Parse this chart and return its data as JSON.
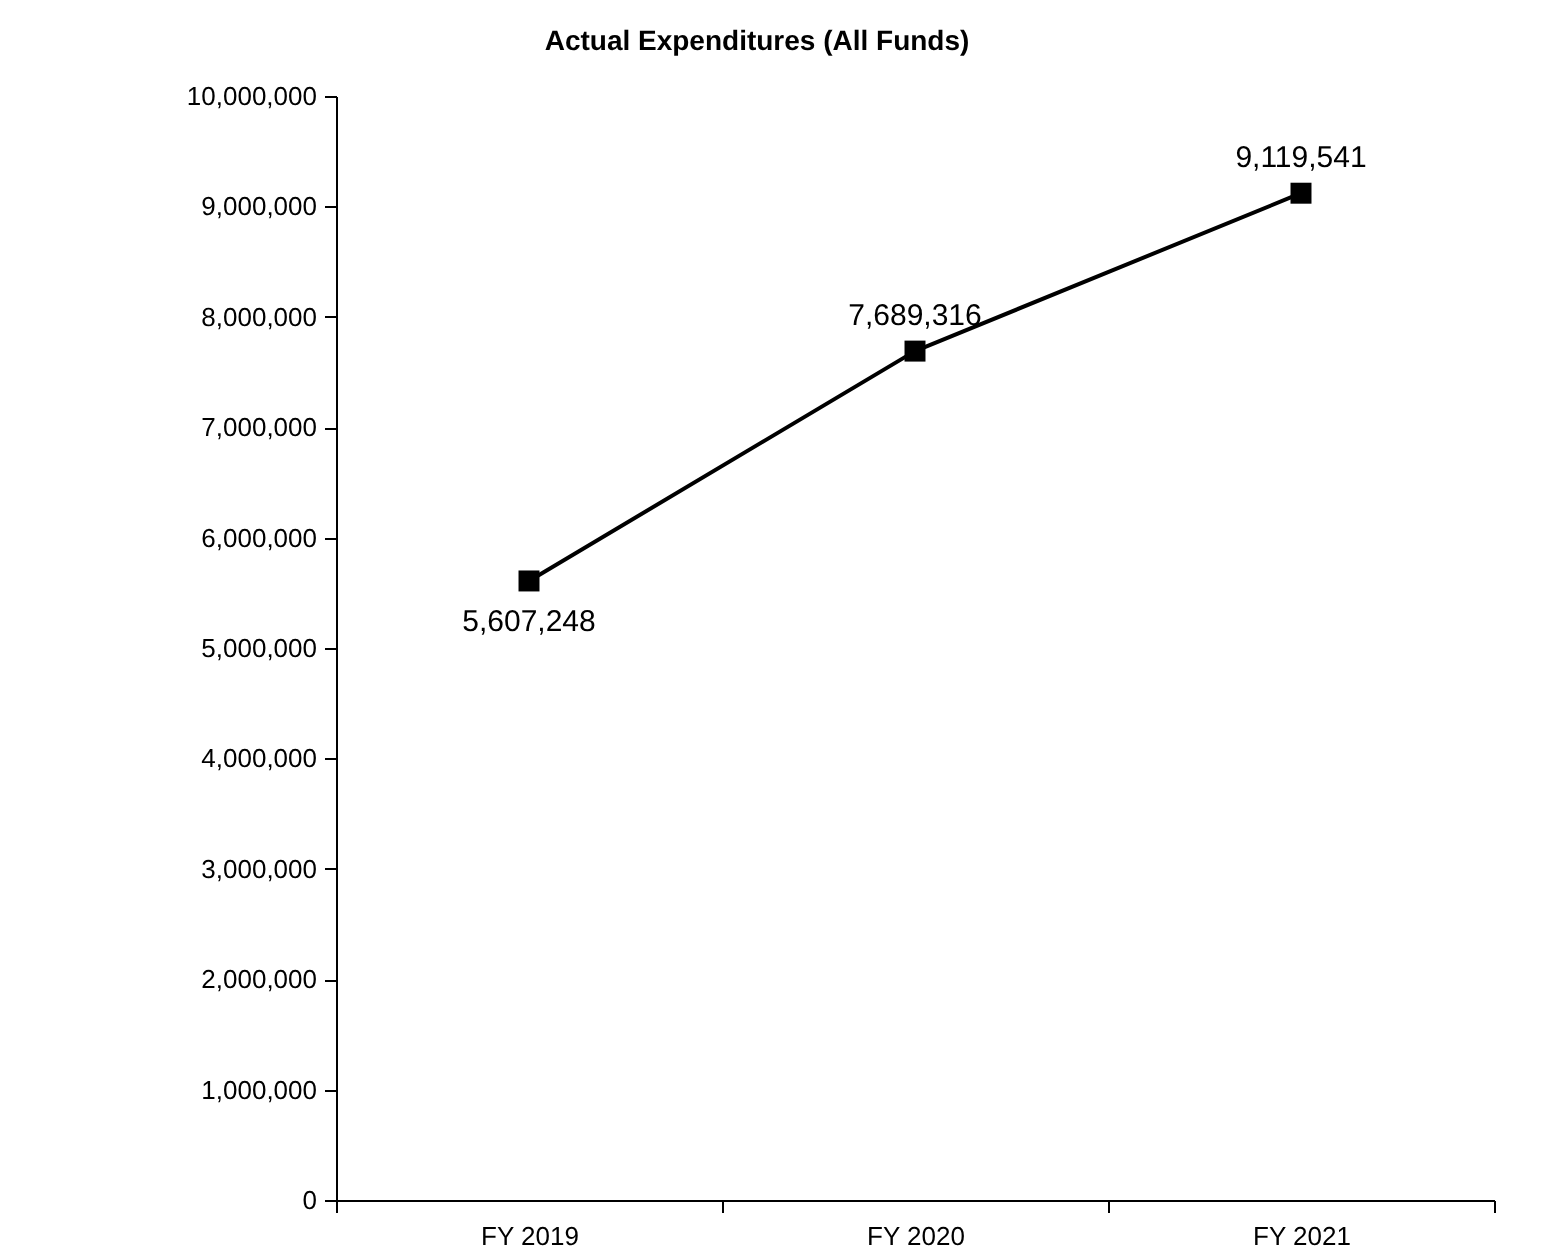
{
  "chart_data": {
    "type": "line",
    "title": "Actual Expenditures (All Funds)",
    "categories": [
      "FY 2019",
      "FY 2020",
      "FY 2021"
    ],
    "series": [
      {
        "color": "#000000",
        "values": [
          5607248,
          7689316,
          9119541
        ],
        "value_labels": [
          "5,607,248",
          "7,689,316",
          "9,119,541"
        ]
      }
    ],
    "ylim": [
      0,
      10000000
    ],
    "yticks": [
      {
        "value": 0,
        "label": "0"
      },
      {
        "value": 1000000,
        "label": "1,000,000"
      },
      {
        "value": 2000000,
        "label": "2,000,000"
      },
      {
        "value": 3000000,
        "label": "3,000,000"
      },
      {
        "value": 4000000,
        "label": "4,000,000"
      },
      {
        "value": 5000000,
        "label": "5,000,000"
      },
      {
        "value": 6000000,
        "label": "6,000,000"
      },
      {
        "value": 7000000,
        "label": "7,000,000"
      },
      {
        "value": 8000000,
        "label": "8,000,000"
      },
      {
        "value": 9000000,
        "label": "9,000,000"
      },
      {
        "value": 10000000,
        "label": "10,000,000"
      }
    ],
    "marker": "square",
    "grid": false
  }
}
